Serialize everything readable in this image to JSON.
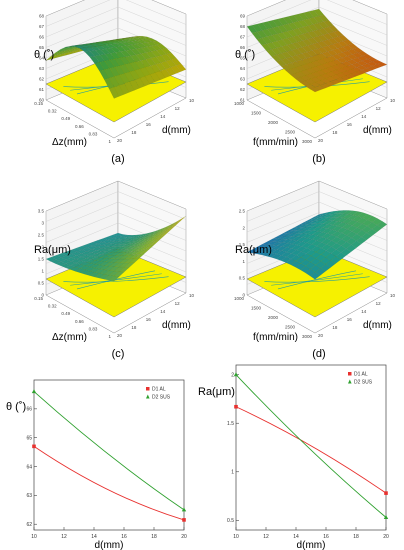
{
  "chart_data": [
    {
      "panel": "(a)",
      "type": "surface3d",
      "zlabel": "θ (˚)",
      "xlabel": "Δz(mm)",
      "ylabel": "d(mm)",
      "z_ticks": [
        "60",
        "61",
        "62",
        "63",
        "64",
        "65",
        "66",
        "67",
        "68"
      ],
      "x_ticks": [
        "0.15",
        "0.32",
        "0.49",
        "0.66",
        "0.83",
        "1"
      ],
      "y_ticks": [
        "10",
        "12",
        "14",
        "16",
        "18",
        "20"
      ],
      "colors": [
        "#c8a800",
        "#8aa616",
        "#3d9a3c",
        "#1a7f8c"
      ]
    },
    {
      "panel": "(b)",
      "type": "surface3d",
      "zlabel": "θ (˚)",
      "xlabel": "f(mm/min)",
      "ylabel": "d(mm)",
      "z_ticks": [
        "61",
        "62",
        "63",
        "64",
        "65",
        "66",
        "67",
        "68",
        "69"
      ],
      "x_ticks": [
        "1000",
        "1500",
        "2000",
        "2500",
        "3000"
      ],
      "y_ticks": [
        "10",
        "12",
        "14",
        "16",
        "18",
        "20"
      ],
      "colors": [
        "#d04010",
        "#b87b10",
        "#7fa020",
        "#2e9a48"
      ]
    },
    {
      "panel": "(c)",
      "type": "surface3d",
      "zlabel": "Ra(μm)",
      "xlabel": "Δz(mm)",
      "ylabel": "d(mm)",
      "z_ticks": [
        "0",
        "0.5",
        "1",
        "1.5",
        "2",
        "2.5",
        "3",
        "3.5"
      ],
      "x_ticks": [
        "0.15",
        "0.32",
        "0.49",
        "0.66",
        "0.83",
        "1"
      ],
      "y_ticks": [
        "10",
        "12",
        "14",
        "16",
        "18",
        "20"
      ],
      "colors": [
        "#1e8ea8",
        "#2f9a70",
        "#7fb030",
        "#c0b020"
      ]
    },
    {
      "panel": "(d)",
      "type": "surface3d",
      "zlabel": "Ra(μm)",
      "xlabel": "f(mm/min)",
      "ylabel": "d(mm)",
      "z_ticks": [
        "0",
        "0.5",
        "1",
        "1.5",
        "2",
        "2.5"
      ],
      "x_ticks": [
        "1000",
        "1500",
        "2000",
        "2500",
        "3000"
      ],
      "y_ticks": [
        "10",
        "12",
        "14",
        "16",
        "18",
        "20"
      ],
      "colors": [
        "#2b2fb8",
        "#1f6fb0",
        "#1e9a8a",
        "#5cb040"
      ]
    },
    {
      "panel": "(e)",
      "type": "line",
      "ylabel": "θ (˚)",
      "xlabel": "d(mm)",
      "x_ticks": [
        "10",
        "12",
        "14",
        "16",
        "18",
        "20"
      ],
      "y_ticks": [
        "62",
        "63",
        "64",
        "65",
        "66"
      ],
      "xlim": [
        10,
        20
      ],
      "ylim": [
        61.8,
        67
      ],
      "series": [
        {
          "name": "D1 AL",
          "color": "#e8312f",
          "marker": "square",
          "x": [
            10,
            20
          ],
          "y": [
            64.7,
            62.15
          ]
        },
        {
          "name": "D2 SUS",
          "color": "#2ea02e",
          "marker": "triangle",
          "x": [
            10,
            20
          ],
          "y": [
            66.6,
            62.5
          ]
        }
      ]
    },
    {
      "panel": "(f)",
      "type": "line",
      "ylabel": "Ra(μm)",
      "xlabel": "d(mm)",
      "x_ticks": [
        "10",
        "12",
        "14",
        "16",
        "18",
        "20"
      ],
      "y_ticks": [
        "0.5",
        "1",
        "1.5",
        "2"
      ],
      "xlim": [
        10,
        20
      ],
      "ylim": [
        0.4,
        2.1
      ],
      "series": [
        {
          "name": "D1 AL",
          "color": "#e8312f",
          "marker": "square",
          "x": [
            10,
            20
          ],
          "y": [
            1.67,
            0.78
          ]
        },
        {
          "name": "D2 SUS",
          "color": "#2ea02e",
          "marker": "triangle",
          "x": [
            10,
            20
          ],
          "y": [
            2.0,
            0.53
          ]
        }
      ]
    }
  ]
}
